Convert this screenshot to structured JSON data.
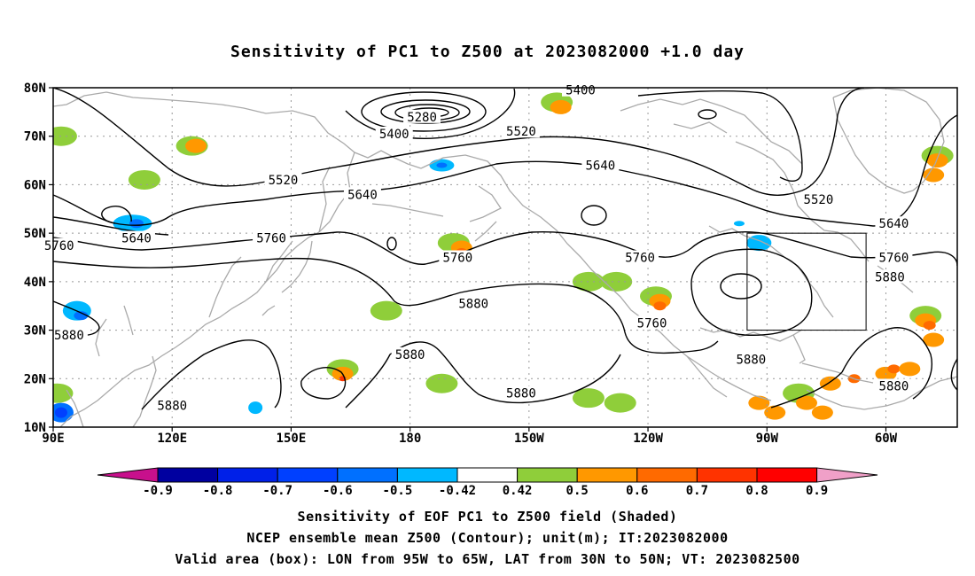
{
  "title": "Sensitivity of PC1 to Z500 at 2023082000 +1.0 day",
  "axes": {
    "lat_labels": [
      "80N",
      "70N",
      "60N",
      "50N",
      "40N",
      "30N",
      "20N",
      "10N"
    ],
    "lon_labels": [
      "90E",
      "120E",
      "150E",
      "180",
      "150W",
      "120W",
      "90W",
      "60W"
    ],
    "lat_values": [
      80,
      70,
      60,
      50,
      40,
      30,
      20,
      10
    ],
    "lon_values": [
      90,
      120,
      150,
      180,
      210,
      240,
      270,
      300
    ],
    "lon_range": [
      90,
      318
    ],
    "lat_range": [
      10,
      80
    ]
  },
  "contour_labels": [
    {
      "text": "5400",
      "lon": 223,
      "lat": 79.5
    },
    {
      "text": "5280",
      "lon": 183,
      "lat": 74
    },
    {
      "text": "5400",
      "lon": 176,
      "lat": 70.5
    },
    {
      "text": "5520",
      "lon": 208,
      "lat": 71
    },
    {
      "text": "5640",
      "lon": 228,
      "lat": 64
    },
    {
      "text": "5520",
      "lon": 148,
      "lat": 61
    },
    {
      "text": "5640",
      "lon": 168,
      "lat": 58
    },
    {
      "text": "5520",
      "lon": 283,
      "lat": 57
    },
    {
      "text": "5640",
      "lon": 302,
      "lat": 52
    },
    {
      "text": "5640",
      "lon": 111,
      "lat": 49
    },
    {
      "text": "5760",
      "lon": 145,
      "lat": 49
    },
    {
      "text": "5760",
      "lon": 91.5,
      "lat": 47.5
    },
    {
      "text": "5760",
      "lon": 192,
      "lat": 45
    },
    {
      "text": "5760",
      "lon": 238,
      "lat": 45
    },
    {
      "text": "5760",
      "lon": 302,
      "lat": 45
    },
    {
      "text": "5880",
      "lon": 301,
      "lat": 41
    },
    {
      "text": "5880",
      "lon": 196,
      "lat": 35.5
    },
    {
      "text": "5760",
      "lon": 241,
      "lat": 31.5
    },
    {
      "text": "5880",
      "lon": 94,
      "lat": 29
    },
    {
      "text": "5880",
      "lon": 180,
      "lat": 25
    },
    {
      "text": "5880",
      "lon": 266,
      "lat": 24
    },
    {
      "text": "5880",
      "lon": 302,
      "lat": 18.5
    },
    {
      "text": "5880",
      "lon": 208,
      "lat": 17
    },
    {
      "text": "5880",
      "lon": 120,
      "lat": 14.5
    }
  ],
  "valid_box": {
    "lon_min": 265,
    "lon_max": 295,
    "lat_min": 30,
    "lat_max": 50
  },
  "colorbar": {
    "labels": [
      "-0.9",
      "-0.8",
      "-0.7",
      "-0.6",
      "-0.5",
      "-0.42",
      "0.42",
      "0.5",
      "0.6",
      "0.7",
      "0.8",
      "0.9"
    ],
    "colors": [
      "#0000a0",
      "#0020e8",
      "#0040ff",
      "#0070ff",
      "#00b8ff",
      "#ffffff",
      "#8fce3a",
      "#ff9800",
      "#ff6a00",
      "#ff3300",
      "#ff0000"
    ],
    "low_extend_color": "#c8108c",
    "high_extend_color": "#f0a0c8"
  },
  "captions": [
    "Sensitivity of EOF PC1 to Z500 field (Shaded)",
    "NCEP ensemble mean Z500 (Contour); unit(m); IT:2023082000",
    "Valid area (box): LON from 95W to 65W, LAT from 30N to 50N; VT: 2023082500"
  ],
  "colors": {
    "coastline": "#aaaaaa",
    "contour": "#000000",
    "grid": "#999999"
  }
}
